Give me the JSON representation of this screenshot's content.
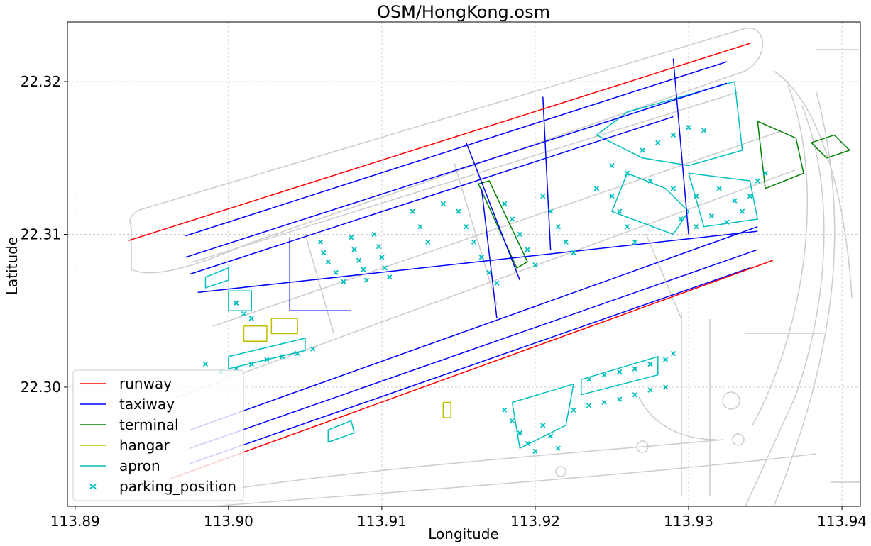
{
  "figure": {
    "title": "OSM/HongKong.osm",
    "xlabel": "Longitude",
    "ylabel": "Latitude"
  },
  "axes": {
    "xlim": [
      113.8895,
      113.9412
    ],
    "ylim": [
      22.2922,
      22.3239
    ],
    "xticks": [
      {
        "value": 113.89,
        "label": "113.89"
      },
      {
        "value": 113.9,
        "label": "113.90"
      },
      {
        "value": 113.91,
        "label": "113.91"
      },
      {
        "value": 113.92,
        "label": "113.92"
      },
      {
        "value": 113.93,
        "label": "113.93"
      },
      {
        "value": 113.94,
        "label": "113.94"
      }
    ],
    "yticks": [
      {
        "value": 22.3,
        "label": "22.30"
      },
      {
        "value": 22.31,
        "label": "22.31"
      },
      {
        "value": 22.32,
        "label": "22.32"
      }
    ],
    "grid": true
  },
  "legend": {
    "placement": "lower-left",
    "entries": [
      {
        "label": "runway",
        "color": "#ff0000",
        "marker": "line"
      },
      {
        "label": "taxiway",
        "color": "#0000ff",
        "marker": "line"
      },
      {
        "label": "terminal",
        "color": "#008000",
        "marker": "line"
      },
      {
        "label": "hangar",
        "color": "#bfbf00",
        "marker": "line"
      },
      {
        "label": "apron",
        "color": "#00bfbf",
        "marker": "line"
      },
      {
        "label": "parking_position",
        "color": "#00bfbf",
        "marker": "x"
      }
    ]
  },
  "colors": {
    "background_roads": "#cccccc",
    "runway": "#ff0000",
    "taxiway": "#0000ff",
    "terminal": "#008000",
    "hangar": "#bfbf00",
    "apron": "#00bfbf"
  },
  "chart_data": {
    "type": "scatter",
    "runways": [
      {
        "from": [
          113.8935,
          22.3096
        ],
        "to": [
          113.934,
          22.3225
        ]
      },
      {
        "from": [
          113.8962,
          22.294
        ],
        "to": [
          113.9355,
          22.3083
        ]
      }
    ],
    "taxiways": [
      [
        [
          113.8972,
          22.3099
        ],
        [
          113.9325,
          22.3213
        ]
      ],
      [
        [
          113.8972,
          22.3085
        ],
        [
          113.9325,
          22.3199
        ]
      ],
      [
        [
          113.8975,
          22.3074
        ],
        [
          113.929,
          22.3177
        ]
      ],
      [
        [
          113.898,
          22.3062
        ],
        [
          113.9345,
          22.3102
        ]
      ],
      [
        [
          113.8975,
          22.2972
        ],
        [
          113.9345,
          22.3105
        ]
      ],
      [
        [
          113.8975,
          22.296
        ],
        [
          113.9345,
          22.309
        ]
      ],
      [
        [
          113.8975,
          22.295
        ],
        [
          113.934,
          22.3078
        ]
      ],
      [
        [
          113.904,
          22.3098
        ],
        [
          113.904,
          22.305
        ]
      ],
      [
        [
          113.904,
          22.305
        ],
        [
          113.908,
          22.305
        ]
      ],
      [
        [
          113.9155,
          22.316
        ],
        [
          113.919,
          22.307
        ]
      ],
      [
        [
          113.9165,
          22.313
        ],
        [
          113.9175,
          22.3045
        ]
      ],
      [
        [
          113.929,
          22.3215
        ],
        [
          113.93,
          22.31
        ]
      ],
      [
        [
          113.9205,
          22.319
        ],
        [
          113.921,
          22.309
        ]
      ]
    ],
    "terminals": [
      [
        [
          113.9163,
          22.3133
        ],
        [
          113.917,
          22.3135
        ],
        [
          113.9195,
          22.3082
        ],
        [
          113.9188,
          22.3078
        ],
        [
          113.9163,
          22.3133
        ]
      ],
      [
        [
          113.9345,
          22.3174
        ],
        [
          113.937,
          22.3163
        ],
        [
          113.9375,
          22.314
        ],
        [
          113.935,
          22.313
        ],
        [
          113.9345,
          22.3174
        ]
      ],
      [
        [
          113.938,
          22.316
        ],
        [
          113.9395,
          22.3165
        ],
        [
          113.9405,
          22.3155
        ],
        [
          113.939,
          22.315
        ],
        [
          113.938,
          22.316
        ]
      ]
    ],
    "hangars": [
      [
        [
          113.901,
          22.304
        ],
        [
          113.9025,
          22.304
        ],
        [
          113.9025,
          22.303
        ],
        [
          113.901,
          22.303
        ],
        [
          113.901,
          22.304
        ]
      ],
      [
        [
          113.9028,
          22.3045
        ],
        [
          113.9045,
          22.3045
        ],
        [
          113.9045,
          22.3035
        ],
        [
          113.9028,
          22.3035
        ],
        [
          113.9028,
          22.3045
        ]
      ],
      [
        [
          113.914,
          22.299
        ],
        [
          113.9145,
          22.299
        ],
        [
          113.9145,
          22.298
        ],
        [
          113.914,
          22.298
        ],
        [
          113.914,
          22.299
        ]
      ]
    ],
    "aprons": [
      [
        [
          113.8985,
          22.3072
        ],
        [
          113.9,
          22.3078
        ],
        [
          113.9,
          22.307
        ],
        [
          113.8985,
          22.3065
        ],
        [
          113.8985,
          22.3072
        ]
      ],
      [
        [
          113.9,
          22.3063
        ],
        [
          113.9015,
          22.3063
        ],
        [
          113.9015,
          22.305
        ],
        [
          113.9,
          22.305
        ],
        [
          113.9,
          22.3063
        ]
      ],
      [
        [
          113.9,
          22.302
        ],
        [
          113.905,
          22.3032
        ],
        [
          113.905,
          22.3024
        ],
        [
          113.9,
          22.3012
        ],
        [
          113.9,
          22.302
        ]
      ],
      [
        [
          113.9065,
          22.2972
        ],
        [
          113.908,
          22.2978
        ],
        [
          113.9082,
          22.297
        ],
        [
          113.9065,
          22.2964
        ],
        [
          113.9065,
          22.2972
        ]
      ],
      [
        [
          113.9185,
          22.299
        ],
        [
          113.9225,
          22.3002
        ],
        [
          113.922,
          22.2975
        ],
        [
          113.919,
          22.296
        ],
        [
          113.9185,
          22.299
        ]
      ],
      [
        [
          113.923,
          22.3005
        ],
        [
          113.928,
          22.302
        ],
        [
          113.928,
          22.3008
        ],
        [
          113.923,
          22.2995
        ],
        [
          113.923,
          22.3005
        ]
      ],
      [
        [
          113.924,
          22.3165
        ],
        [
          113.927,
          22.315
        ],
        [
          113.93,
          22.3145
        ],
        [
          113.9335,
          22.3155
        ],
        [
          113.933,
          22.32
        ],
        [
          113.9295,
          22.319
        ],
        [
          113.926,
          22.318
        ],
        [
          113.924,
          22.3165
        ]
      ],
      [
        [
          113.926,
          22.314
        ],
        [
          113.9285,
          22.313
        ],
        [
          113.93,
          22.3115
        ],
        [
          113.929,
          22.31
        ],
        [
          113.925,
          22.3115
        ],
        [
          113.926,
          22.314
        ]
      ],
      [
        [
          113.93,
          22.314
        ],
        [
          113.934,
          22.3135
        ],
        [
          113.9345,
          22.311
        ],
        [
          113.931,
          22.3105
        ],
        [
          113.93,
          22.314
        ]
      ]
    ],
    "parking_positions": [
      [
        113.906,
        22.3095
      ],
      [
        113.9062,
        22.3088
      ],
      [
        113.9065,
        22.3082
      ],
      [
        113.907,
        22.3075
      ],
      [
        113.9075,
        22.3069
      ],
      [
        113.908,
        22.3098
      ],
      [
        113.9082,
        22.309
      ],
      [
        113.9085,
        22.3083
      ],
      [
        113.9088,
        22.3077
      ],
      [
        113.909,
        22.307
      ],
      [
        113.9095,
        22.31
      ],
      [
        113.9098,
        22.3092
      ],
      [
        113.91,
        22.3085
      ],
      [
        113.9102,
        22.3078
      ],
      [
        113.9105,
        22.3072
      ],
      [
        113.912,
        22.3115
      ],
      [
        113.9125,
        22.3105
      ],
      [
        113.913,
        22.3095
      ],
      [
        113.914,
        22.312
      ],
      [
        113.915,
        22.3115
      ],
      [
        113.9155,
        22.3105
      ],
      [
        113.916,
        22.3095
      ],
      [
        113.9165,
        22.3085
      ],
      [
        113.917,
        22.3075
      ],
      [
        113.9175,
        22.3068
      ],
      [
        113.918,
        22.312
      ],
      [
        113.9185,
        22.311
      ],
      [
        113.919,
        22.31
      ],
      [
        113.9195,
        22.309
      ],
      [
        113.92,
        22.308
      ],
      [
        113.9205,
        22.3125
      ],
      [
        113.921,
        22.3115
      ],
      [
        113.9215,
        22.3105
      ],
      [
        113.922,
        22.3095
      ],
      [
        113.9225,
        22.3088
      ],
      [
        113.924,
        22.313
      ],
      [
        113.925,
        22.3125
      ],
      [
        113.9255,
        22.3115
      ],
      [
        113.926,
        22.3105
      ],
      [
        113.9265,
        22.3095
      ],
      [
        113.927,
        22.3155
      ],
      [
        113.928,
        22.316
      ],
      [
        113.929,
        22.3165
      ],
      [
        113.93,
        22.317
      ],
      [
        113.931,
        22.3168
      ],
      [
        113.925,
        22.3145
      ],
      [
        113.926,
        22.314
      ],
      [
        113.9275,
        22.3135
      ],
      [
        113.929,
        22.313
      ],
      [
        113.9305,
        22.3125
      ],
      [
        113.932,
        22.313
      ],
      [
        113.933,
        22.3122
      ],
      [
        113.9295,
        22.311
      ],
      [
        113.9305,
        22.3105
      ],
      [
        113.9315,
        22.3112
      ],
      [
        113.9325,
        22.3108
      ],
      [
        113.9335,
        22.3115
      ],
      [
        113.934,
        22.3125
      ],
      [
        113.9345,
        22.3135
      ],
      [
        113.935,
        22.314
      ],
      [
        113.8985,
        22.3015
      ],
      [
        113.8995,
        22.301
      ],
      [
        113.9005,
        22.3012
      ],
      [
        113.9015,
        22.3015
      ],
      [
        113.9025,
        22.3018
      ],
      [
        113.9035,
        22.302
      ],
      [
        113.9045,
        22.3022
      ],
      [
        113.9055,
        22.3025
      ],
      [
        113.9005,
        22.3055
      ],
      [
        113.901,
        22.3048
      ],
      [
        113.9015,
        22.3045
      ],
      [
        113.918,
        22.2985
      ],
      [
        113.9185,
        22.2978
      ],
      [
        113.919,
        22.297
      ],
      [
        113.9195,
        22.2963
      ],
      [
        113.92,
        22.2958
      ],
      [
        113.9205,
        22.2975
      ],
      [
        113.921,
        22.2968
      ],
      [
        113.9215,
        22.296
      ],
      [
        113.9235,
        22.3005
      ],
      [
        113.9245,
        22.3008
      ],
      [
        113.9255,
        22.301
      ],
      [
        113.9265,
        22.3012
      ],
      [
        113.9275,
        22.3015
      ],
      [
        113.9285,
        22.3018
      ],
      [
        113.929,
        22.3022
      ],
      [
        113.9225,
        22.2985
      ],
      [
        113.9235,
        22.2988
      ],
      [
        113.9245,
        22.299
      ],
      [
        113.9255,
        22.2992
      ],
      [
        113.9265,
        22.2995
      ],
      [
        113.9275,
        22.2998
      ],
      [
        113.9285,
        22.3
      ]
    ]
  }
}
